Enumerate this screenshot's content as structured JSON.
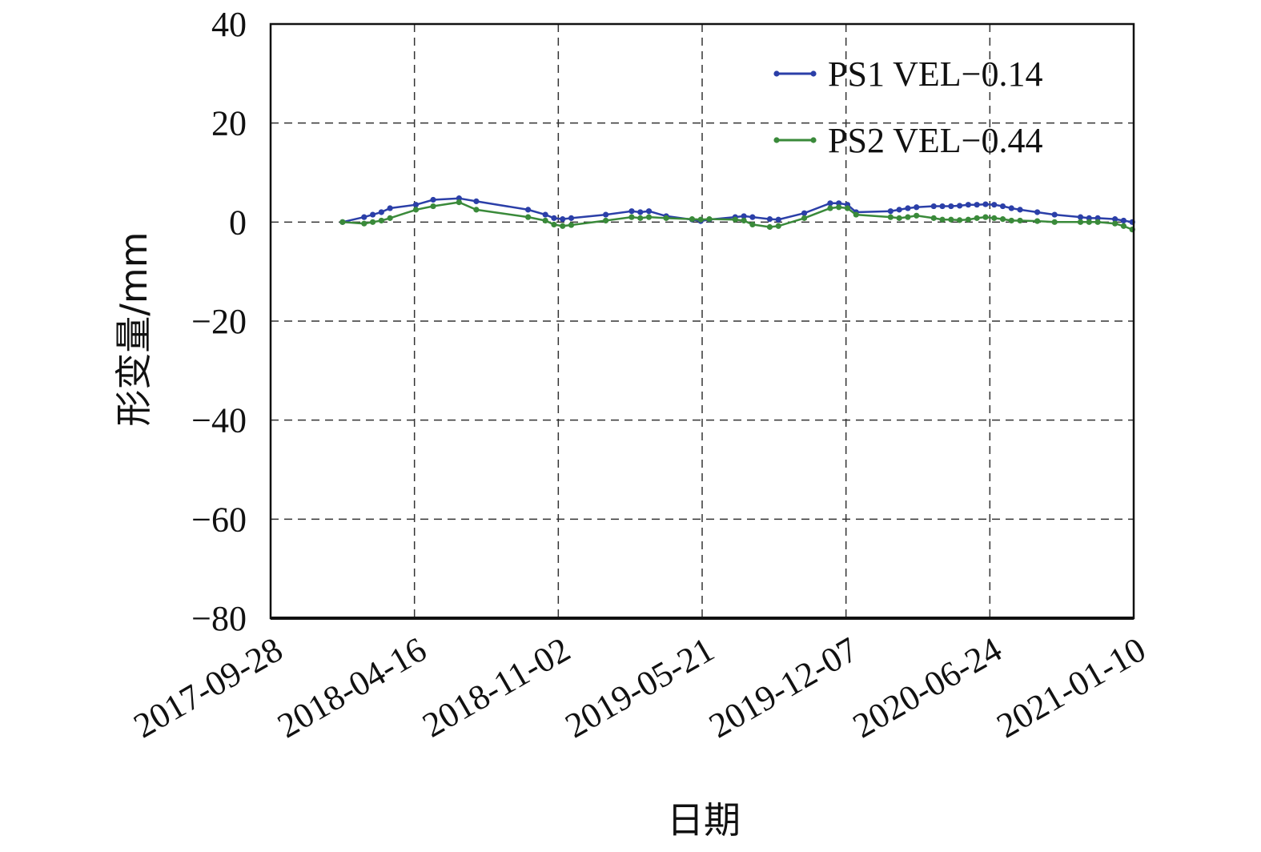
{
  "chart_data": {
    "type": "line",
    "xlabel": "日期",
    "ylabel": "形变量/mm",
    "ylim": [
      -80,
      40
    ],
    "yticks": [
      40,
      20,
      0,
      -20,
      -40,
      -60,
      -80
    ],
    "ytick_labels": [
      "40",
      "20",
      "0",
      "−20",
      "−40",
      "−60",
      "−80"
    ],
    "xlim": [
      "2017-09-28",
      "2021-01-10"
    ],
    "xticks": [
      "2017-09-28",
      "2018-04-16",
      "2018-11-02",
      "2019-05-21",
      "2019-12-07",
      "2020-06-24",
      "2021-01-10"
    ],
    "grid": true,
    "legend_position": "top-right",
    "series": [
      {
        "name": "PS1 VEL−0.14",
        "color": "#2b3fa8",
        "points": [
          [
            "2018-01-06",
            0.0
          ],
          [
            "2018-02-05",
            1.0
          ],
          [
            "2018-02-17",
            1.5
          ],
          [
            "2018-03-01",
            2.0
          ],
          [
            "2018-03-13",
            2.8
          ],
          [
            "2018-04-18",
            3.5
          ],
          [
            "2018-05-12",
            4.5
          ],
          [
            "2018-06-17",
            4.8
          ],
          [
            "2018-07-11",
            4.2
          ],
          [
            "2018-09-21",
            2.5
          ],
          [
            "2018-10-15",
            1.5
          ],
          [
            "2018-10-27",
            0.8
          ],
          [
            "2018-11-08",
            0.6
          ],
          [
            "2018-11-20",
            0.8
          ],
          [
            "2019-01-07",
            1.5
          ],
          [
            "2019-02-12",
            2.2
          ],
          [
            "2019-02-24",
            2.0
          ],
          [
            "2019-03-08",
            2.2
          ],
          [
            "2019-04-01",
            1.2
          ],
          [
            "2019-05-07",
            0.5
          ],
          [
            "2019-05-19",
            0.2
          ],
          [
            "2019-05-31",
            0.5
          ],
          [
            "2019-07-06",
            1.0
          ],
          [
            "2019-07-18",
            1.2
          ],
          [
            "2019-07-30",
            1.0
          ],
          [
            "2019-08-23",
            0.6
          ],
          [
            "2019-09-04",
            0.5
          ],
          [
            "2019-10-10",
            1.8
          ],
          [
            "2019-11-15",
            3.8
          ],
          [
            "2019-11-27",
            3.8
          ],
          [
            "2019-12-09",
            3.5
          ],
          [
            "2019-12-21",
            2.0
          ],
          [
            "2020-02-07",
            2.2
          ],
          [
            "2020-02-19",
            2.5
          ],
          [
            "2020-03-02",
            2.8
          ],
          [
            "2020-03-14",
            3.0
          ],
          [
            "2020-04-07",
            3.2
          ],
          [
            "2020-04-19",
            3.2
          ],
          [
            "2020-05-01",
            3.2
          ],
          [
            "2020-05-13",
            3.3
          ],
          [
            "2020-05-25",
            3.5
          ],
          [
            "2020-06-06",
            3.5
          ],
          [
            "2020-06-18",
            3.6
          ],
          [
            "2020-06-30",
            3.5
          ],
          [
            "2020-07-12",
            3.2
          ],
          [
            "2020-07-24",
            2.8
          ],
          [
            "2020-08-05",
            2.5
          ],
          [
            "2020-08-29",
            2.0
          ],
          [
            "2020-09-22",
            1.5
          ],
          [
            "2020-10-28",
            1.0
          ],
          [
            "2020-11-09",
            0.8
          ],
          [
            "2020-11-21",
            0.8
          ],
          [
            "2020-12-15",
            0.6
          ],
          [
            "2020-12-27",
            0.3
          ],
          [
            "2021-01-08",
            0.0
          ]
        ]
      },
      {
        "name": "PS2 VEL−0.44",
        "color": "#3a8a3a",
        "points": [
          [
            "2018-01-06",
            0.0
          ],
          [
            "2018-02-05",
            -0.3
          ],
          [
            "2018-02-17",
            0.0
          ],
          [
            "2018-03-01",
            0.3
          ],
          [
            "2018-03-13",
            0.8
          ],
          [
            "2018-04-18",
            2.5
          ],
          [
            "2018-05-12",
            3.2
          ],
          [
            "2018-06-17",
            4.0
          ],
          [
            "2018-07-11",
            2.5
          ],
          [
            "2018-09-21",
            1.0
          ],
          [
            "2018-10-15",
            0.3
          ],
          [
            "2018-10-27",
            -0.5
          ],
          [
            "2018-11-08",
            -0.8
          ],
          [
            "2018-11-20",
            -0.6
          ],
          [
            "2019-01-07",
            0.3
          ],
          [
            "2019-02-12",
            1.0
          ],
          [
            "2019-02-24",
            0.8
          ],
          [
            "2019-03-08",
            1.0
          ],
          [
            "2019-04-01",
            0.8
          ],
          [
            "2019-05-07",
            0.6
          ],
          [
            "2019-05-19",
            0.5
          ],
          [
            "2019-05-31",
            0.6
          ],
          [
            "2019-07-06",
            0.5
          ],
          [
            "2019-07-18",
            0.3
          ],
          [
            "2019-07-30",
            -0.5
          ],
          [
            "2019-08-23",
            -1.0
          ],
          [
            "2019-09-04",
            -0.8
          ],
          [
            "2019-10-10",
            0.8
          ],
          [
            "2019-11-15",
            2.8
          ],
          [
            "2019-11-27",
            3.0
          ],
          [
            "2019-12-09",
            2.8
          ],
          [
            "2019-12-21",
            1.5
          ],
          [
            "2020-02-07",
            1.0
          ],
          [
            "2020-02-19",
            0.8
          ],
          [
            "2020-03-02",
            1.0
          ],
          [
            "2020-03-14",
            1.3
          ],
          [
            "2020-04-07",
            0.8
          ],
          [
            "2020-04-19",
            0.5
          ],
          [
            "2020-05-01",
            0.5
          ],
          [
            "2020-05-13",
            0.4
          ],
          [
            "2020-05-25",
            0.5
          ],
          [
            "2020-06-06",
            0.8
          ],
          [
            "2020-06-18",
            1.0
          ],
          [
            "2020-06-30",
            0.8
          ],
          [
            "2020-07-12",
            0.6
          ],
          [
            "2020-07-24",
            0.3
          ],
          [
            "2020-08-05",
            0.3
          ],
          [
            "2020-08-29",
            0.2
          ],
          [
            "2020-09-22",
            0.0
          ],
          [
            "2020-10-28",
            0.0
          ],
          [
            "2020-11-09",
            0.0
          ],
          [
            "2020-11-21",
            0.0
          ],
          [
            "2020-12-15",
            -0.3
          ],
          [
            "2020-12-27",
            -0.8
          ],
          [
            "2021-01-08",
            -1.5
          ]
        ]
      }
    ]
  }
}
